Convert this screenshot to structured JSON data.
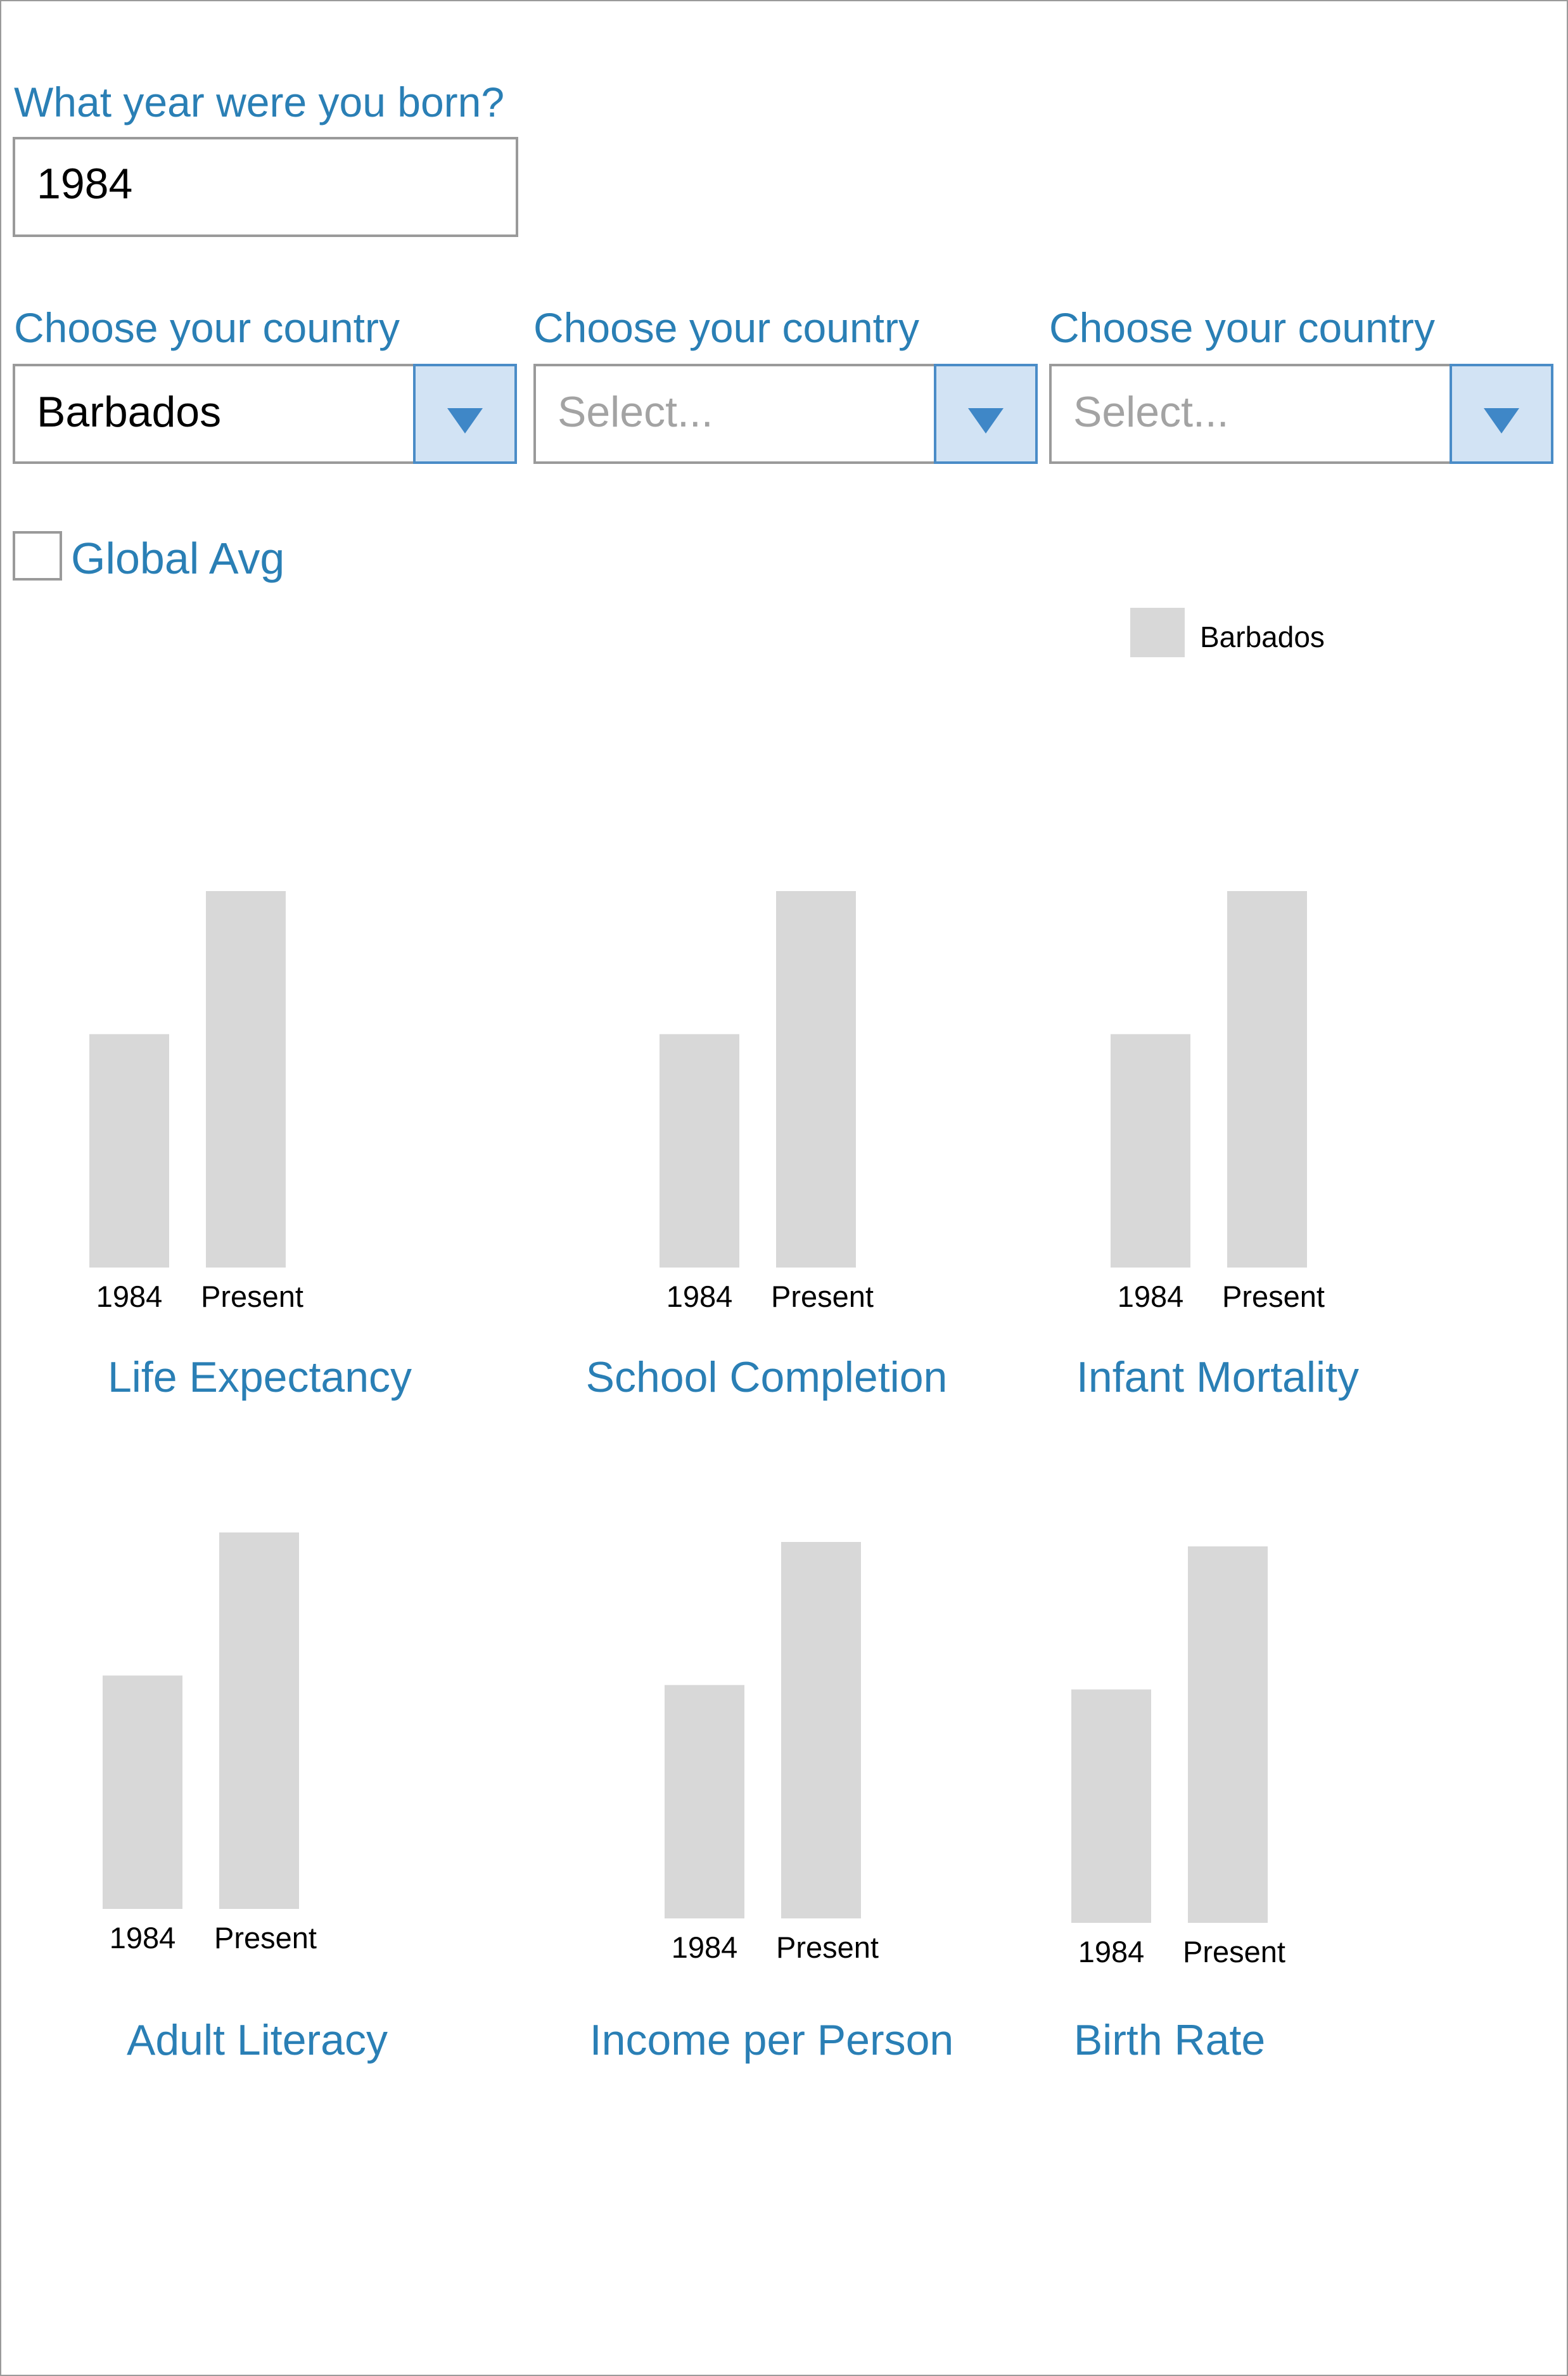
{
  "birth_year": {
    "question": "What year were you born?",
    "value": "1984"
  },
  "countries": [
    {
      "label": "Choose your country",
      "value": "Barbados",
      "placeholder": "Select..."
    },
    {
      "label": "Choose your country",
      "value": "",
      "placeholder": "Select..."
    },
    {
      "label": "Choose your country",
      "value": "",
      "placeholder": "Select..."
    }
  ],
  "global_avg": {
    "label": "Global Avg",
    "checked": false
  },
  "legend": {
    "series_name": "Barbados",
    "color": "#d8d8d8"
  },
  "colors": {
    "accent": "#2a7fb5",
    "bar": "#d8d8d8",
    "dropdown_bg": "#d2e3f4",
    "dropdown_border": "#4a8cc7"
  },
  "icons": {
    "dropdown": "chevron-down-icon"
  },
  "chart_data": [
    {
      "type": "bar",
      "title": "Life Expectancy",
      "categories": [
        "1984",
        "Present"
      ],
      "series": [
        {
          "name": "Barbados",
          "values": [
            0.62,
            1.0
          ]
        }
      ]
    },
    {
      "type": "bar",
      "title": "School Completion",
      "categories": [
        "1984",
        "Present"
      ],
      "series": [
        {
          "name": "Barbados",
          "values": [
            0.62,
            1.0
          ]
        }
      ]
    },
    {
      "type": "bar",
      "title": "Infant Mortality",
      "categories": [
        "1984",
        "Present"
      ],
      "series": [
        {
          "name": "Barbados",
          "values": [
            0.62,
            1.0
          ]
        }
      ]
    },
    {
      "type": "bar",
      "title": "Adult Literacy",
      "categories": [
        "1984",
        "Present"
      ],
      "series": [
        {
          "name": "Barbados",
          "values": [
            0.62,
            1.0
          ]
        }
      ]
    },
    {
      "type": "bar",
      "title": "Income per Person",
      "categories": [
        "1984",
        "Present"
      ],
      "series": [
        {
          "name": "Barbados",
          "values": [
            0.62,
            1.0
          ]
        }
      ]
    },
    {
      "type": "bar",
      "title": "Birth Rate",
      "categories": [
        "1984",
        "Present"
      ],
      "series": [
        {
          "name": "Barbados",
          "values": [
            0.62,
            1.0
          ]
        }
      ]
    }
  ]
}
